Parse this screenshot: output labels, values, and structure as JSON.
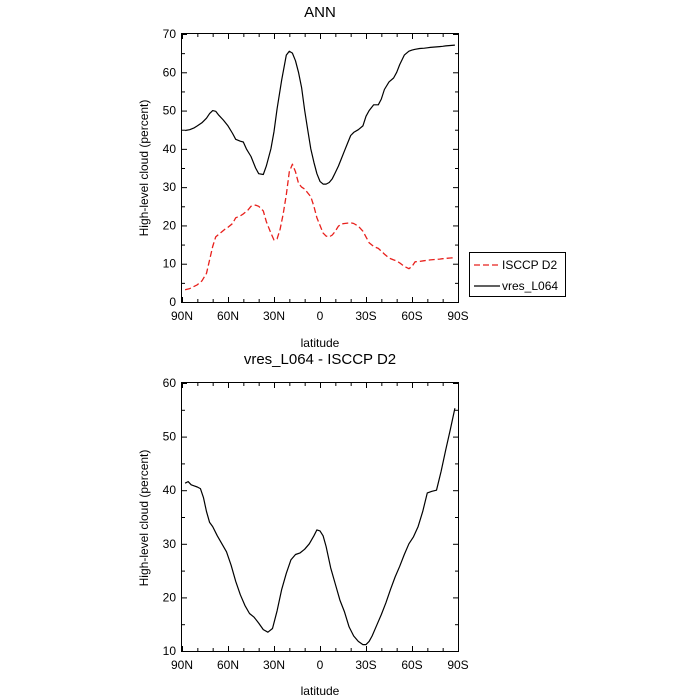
{
  "chart_data": [
    {
      "type": "line",
      "title": "ANN",
      "xlabel": "latitude",
      "ylabel": "High-level cloud (percent)",
      "xlim": [
        90,
        -90
      ],
      "ylim": [
        0,
        70
      ],
      "x_ticks": [
        90,
        60,
        30,
        0,
        -30,
        -60,
        -90
      ],
      "x_tick_labels": [
        "90N",
        "60N",
        "30N",
        "0",
        "30S",
        "60S",
        "90S"
      ],
      "y_ticks": [
        0,
        10,
        20,
        30,
        40,
        50,
        60,
        70
      ],
      "legend": {
        "placement": "right",
        "entries": [
          "ISCCP D2",
          "vres_L064"
        ]
      },
      "series": [
        {
          "name": "ISCCP D2",
          "color": "#e8201c",
          "dash": "dashed",
          "x": [
            88,
            85,
            80,
            77,
            74,
            72,
            70,
            68,
            65,
            62,
            60,
            57,
            55,
            52,
            50,
            47,
            45,
            42,
            40,
            37,
            35,
            32,
            30,
            28,
            26,
            24,
            22,
            20,
            18,
            16,
            14,
            12,
            10,
            8,
            6,
            4,
            2,
            0,
            -2,
            -4,
            -6,
            -8,
            -10,
            -12,
            -14,
            -16,
            -18,
            -20,
            -22,
            -25,
            -28,
            -30,
            -32,
            -35,
            -38,
            -40,
            -42,
            -45,
            -48,
            -50,
            -52,
            -55,
            -58,
            -60,
            -62,
            -65,
            -68,
            -70,
            -72,
            -75,
            -78,
            -80,
            -82,
            -85,
            -88
          ],
          "y": [
            3.2,
            3.5,
            4.5,
            5.5,
            7.5,
            11,
            14.5,
            17,
            18,
            19,
            19.5,
            20.5,
            22,
            22.5,
            23,
            24,
            25,
            25.3,
            25,
            23.8,
            21,
            18,
            16.2,
            16.5,
            19,
            23,
            28,
            34,
            36,
            34,
            31,
            30,
            29.5,
            28.5,
            27.5,
            25,
            22,
            20,
            18,
            17.2,
            17,
            17.5,
            18.5,
            19.8,
            20.4,
            20.5,
            20.6,
            20.7,
            20.5,
            19.8,
            18.5,
            17,
            15.5,
            14.5,
            14,
            13.3,
            12.5,
            11.5,
            11,
            10.7,
            10.2,
            9.3,
            8.7,
            9.3,
            10.5,
            10.6,
            10.8,
            10.9,
            11,
            11.1,
            11.2,
            11.3,
            11.4,
            11.5,
            11.6
          ]
        },
        {
          "name": "vres_L064",
          "color": "#000000",
          "dash": "solid",
          "x": [
            88,
            85,
            82,
            80,
            77,
            74,
            72,
            70,
            68,
            66,
            63,
            60,
            57,
            55,
            52,
            50,
            48,
            45,
            42,
            40,
            37,
            35,
            32,
            30,
            28,
            25,
            22,
            20,
            18,
            16,
            14,
            12,
            10,
            8,
            6,
            4,
            2,
            0,
            -2,
            -4,
            -6,
            -8,
            -10,
            -12,
            -14,
            -16,
            -18,
            -20,
            -22,
            -25,
            -28,
            -30,
            -32,
            -35,
            -38,
            -40,
            -42,
            -45,
            -48,
            -50,
            -52,
            -55,
            -58,
            -60,
            -62,
            -65,
            -68,
            -70,
            -72,
            -75,
            -78,
            -80,
            -82,
            -85,
            -88
          ],
          "y": [
            44.8,
            45,
            45.5,
            46,
            46.8,
            48,
            49.2,
            50,
            49.8,
            48.8,
            47.5,
            46,
            44,
            42.5,
            42,
            41.8,
            40,
            38,
            35,
            33.5,
            33.3,
            35.5,
            40,
            44.5,
            50.5,
            58,
            64.5,
            65.5,
            65,
            63,
            60,
            56,
            50,
            45,
            40,
            36.5,
            33.5,
            31.5,
            30.8,
            30.8,
            31.2,
            32.2,
            33.8,
            35.5,
            37.5,
            39.5,
            41.5,
            43.5,
            44.3,
            45,
            46,
            48.5,
            50,
            51.5,
            51.5,
            53,
            55.5,
            57.5,
            58.5,
            60,
            62,
            64.5,
            65.5,
            65.8,
            66,
            66.2,
            66.3,
            66.4,
            66.5,
            66.6,
            66.7,
            66.8,
            66.9,
            67,
            67.1
          ]
        }
      ]
    },
    {
      "type": "line",
      "title": "vres_L064 - ISCCP D2",
      "xlabel": "latitude",
      "ylabel": "High-level cloud (percent)",
      "xlim": [
        90,
        -90
      ],
      "ylim": [
        10,
        60
      ],
      "x_ticks": [
        90,
        60,
        30,
        0,
        -30,
        -60,
        -90
      ],
      "x_tick_labels": [
        "90N",
        "60N",
        "30N",
        "0",
        "30S",
        "60S",
        "90S"
      ],
      "y_ticks": [
        10,
        20,
        30,
        40,
        50,
        60
      ],
      "series": [
        {
          "color": "#000000",
          "dash": "solid",
          "x": [
            88,
            86,
            84,
            82,
            80,
            78,
            76,
            74,
            72,
            70,
            67,
            64,
            61,
            58,
            55,
            52,
            49,
            46,
            43,
            40,
            37,
            34,
            31,
            28,
            25,
            22,
            19,
            16,
            13,
            10,
            7,
            4,
            2,
            0,
            -2,
            -4,
            -7,
            -10,
            -13,
            -16,
            -19,
            -22,
            -25,
            -28,
            -30,
            -32,
            -34,
            -37,
            -40,
            -43,
            -46,
            -49,
            -52,
            -55,
            -58,
            -61,
            -64,
            -67,
            -70,
            -73,
            -76,
            -79,
            -82,
            -85,
            -88
          ],
          "y": [
            41.3,
            41.6,
            41,
            40.8,
            40.6,
            40.3,
            38.6,
            36,
            34,
            33.2,
            31.5,
            30,
            28.5,
            26,
            23,
            20.5,
            18.5,
            17,
            16.3,
            15.2,
            14,
            13.5,
            14.2,
            17.5,
            21.5,
            24.5,
            27,
            28,
            28.3,
            29,
            30,
            31.5,
            32.6,
            32.4,
            31.5,
            29.5,
            25.5,
            22.5,
            19.5,
            17.3,
            14.5,
            12.8,
            11.8,
            11.2,
            11.2,
            11.8,
            12.8,
            14.8,
            16.8,
            19,
            21.5,
            23.8,
            25.8,
            28,
            30,
            31.3,
            33.2,
            36,
            39.5,
            39.8,
            40,
            43.5,
            47.5,
            51.3,
            55.3
          ]
        }
      ]
    }
  ]
}
